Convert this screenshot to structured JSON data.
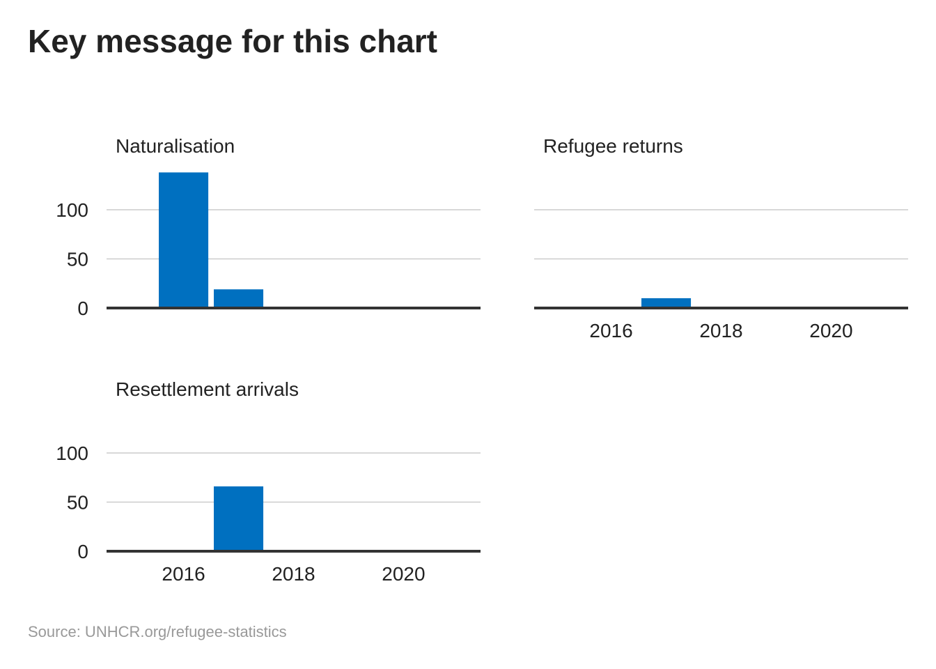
{
  "title": "Key message for this chart",
  "source": "Source: UNHCR.org/refugee-statistics",
  "colors": {
    "bar": "#0070c0",
    "grid": "#cccccc",
    "axis": "#333333"
  },
  "chart_data": [
    {
      "type": "bar",
      "title": "Naturalisation",
      "x": [
        2015,
        2016,
        2017,
        2018,
        2019,
        2020,
        2021
      ],
      "values": [
        0,
        138,
        19,
        0,
        0,
        0,
        0
      ],
      "xlim": [
        2014.6,
        2021.4
      ],
      "ylim": [
        0,
        140
      ],
      "yticks": [
        0,
        50,
        100
      ],
      "xticks": [],
      "show_y_labels": true,
      "grid": true
    },
    {
      "type": "bar",
      "title": "Refugee returns",
      "x": [
        2015,
        2016,
        2017,
        2018,
        2019,
        2020,
        2021
      ],
      "values": [
        0,
        0,
        10,
        0,
        0,
        0,
        0
      ],
      "xlim": [
        2014.6,
        2021.4
      ],
      "ylim": [
        0,
        140
      ],
      "yticks": [
        0,
        50,
        100
      ],
      "xticks": [
        2016,
        2018,
        2020
      ],
      "show_y_labels": false,
      "grid": true
    },
    {
      "type": "bar",
      "title": "Resettlement arrivals",
      "x": [
        2015,
        2016,
        2017,
        2018,
        2019,
        2020,
        2021
      ],
      "values": [
        0,
        0,
        66,
        0,
        0,
        0,
        0
      ],
      "xlim": [
        2014.6,
        2021.4
      ],
      "ylim": [
        0,
        140
      ],
      "yticks": [
        0,
        50,
        100
      ],
      "xticks": [
        2016,
        2018,
        2020
      ],
      "show_y_labels": true,
      "grid": true
    }
  ]
}
